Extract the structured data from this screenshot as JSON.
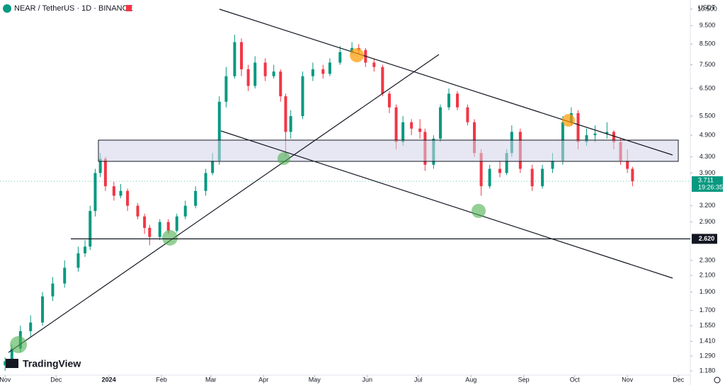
{
  "chart_data": {
    "type": "candlestick",
    "title": "NEAR / TetherUS · 1D · BINANCE",
    "currency": "USDT",
    "brand": "TradingView",
    "up_color": "#089981",
    "down_color": "#f23645",
    "log_scale": true,
    "x": [
      0,
      4,
      9,
      15,
      22,
      28,
      35,
      43,
      47,
      50,
      53,
      56,
      59,
      64,
      68,
      72,
      78,
      82,
      85,
      91,
      96,
      101,
      106,
      112,
      118,
      122,
      126,
      130,
      135,
      139,
      143,
      147,
      153,
      158,
      162,
      165,
      168,
      175,
      181,
      187,
      191,
      197,
      204,
      208,
      212,
      217,
      222,
      226,
      230,
      234,
      239,
      244,
      247,
      252,
      256,
      261,
      266,
      272,
      276,
      280,
      285,
      291,
      295,
      298,
      303,
      310,
      316,
      322,
      328,
      333,
      337,
      342,
      347,
      354,
      358,
      362,
      366,
      369
    ],
    "open": [
      1.22,
      1.25,
      1.35,
      1.5,
      1.58,
      1.85,
      2.0,
      2.2,
      2.4,
      2.5,
      3.1,
      3.9,
      4.25,
      3.6,
      3.4,
      3.5,
      3.2,
      3.0,
      2.8,
      2.65,
      2.9,
      2.75,
      3.0,
      3.2,
      3.5,
      3.9,
      4.2,
      6.0,
      7.0,
      8.6,
      7.3,
      6.6,
      7.6,
      7.0,
      7.2,
      6.2,
      5.0,
      5.5,
      7.0,
      7.3,
      7.1,
      7.6,
      8.1,
      8.3,
      8.2,
      7.6,
      7.4,
      6.3,
      5.8,
      4.7,
      5.3,
      5.1,
      5.0,
      4.1,
      4.8,
      5.8,
      6.3,
      5.8,
      5.3,
      4.4,
      3.6,
      4.0,
      3.9,
      4.4,
      5.0,
      4.0,
      3.6,
      4.0,
      4.2,
      5.3,
      5.6,
      4.7,
      4.9,
      4.95,
      5.0,
      4.7,
      4.2,
      4.0
    ],
    "high": [
      1.28,
      1.38,
      1.55,
      1.65,
      1.9,
      2.08,
      2.3,
      2.5,
      2.6,
      3.2,
      4.0,
      4.4,
      4.3,
      3.7,
      3.65,
      3.55,
      3.25,
      3.05,
      2.85,
      2.95,
      2.95,
      3.05,
      3.3,
      3.6,
      4.0,
      4.4,
      6.2,
      7.4,
      9.0,
      8.8,
      7.5,
      7.9,
      7.8,
      7.5,
      7.3,
      6.3,
      5.7,
      7.2,
      7.6,
      7.5,
      7.8,
      8.4,
      8.6,
      8.5,
      8.3,
      7.8,
      7.5,
      6.4,
      5.9,
      5.5,
      5.4,
      5.4,
      5.1,
      4.9,
      5.9,
      6.5,
      6.4,
      5.9,
      5.4,
      4.5,
      4.1,
      4.2,
      4.5,
      5.2,
      5.1,
      4.1,
      4.1,
      4.4,
      5.5,
      5.8,
      5.7,
      5.1,
      5.2,
      5.3,
      5.05,
      4.8,
      4.5,
      4.05
    ],
    "low": [
      1.18,
      1.23,
      1.32,
      1.45,
      1.55,
      1.8,
      1.95,
      2.15,
      2.35,
      2.45,
      3.0,
      3.8,
      3.5,
      3.3,
      3.35,
      3.1,
      2.95,
      2.7,
      2.52,
      2.6,
      2.7,
      2.72,
      2.95,
      3.15,
      3.4,
      3.85,
      4.1,
      5.8,
      6.9,
      7.0,
      6.4,
      6.5,
      6.8,
      6.9,
      6.0,
      4.3,
      4.8,
      5.4,
      6.8,
      6.9,
      7.0,
      7.5,
      8.0,
      8.0,
      7.4,
      7.2,
      6.2,
      5.6,
      4.5,
      4.6,
      4.9,
      4.8,
      3.95,
      4.0,
      4.7,
      5.7,
      5.7,
      5.2,
      4.3,
      3.4,
      3.55,
      3.8,
      3.85,
      4.3,
      3.9,
      3.5,
      3.55,
      3.9,
      4.1,
      5.2,
      4.5,
      4.6,
      4.7,
      4.8,
      4.5,
      4.1,
      3.9,
      3.6
    ],
    "close": [
      1.25,
      1.35,
      1.5,
      1.58,
      1.85,
      2.0,
      2.2,
      2.4,
      2.5,
      3.1,
      3.9,
      4.25,
      3.6,
      3.4,
      3.5,
      3.2,
      3.0,
      2.8,
      2.65,
      2.9,
      2.75,
      3.0,
      3.2,
      3.5,
      3.9,
      4.2,
      6.0,
      7.0,
      8.6,
      7.3,
      6.6,
      7.6,
      7.0,
      7.2,
      6.2,
      5.0,
      5.5,
      7.0,
      7.3,
      7.1,
      7.6,
      8.1,
      8.3,
      8.2,
      7.6,
      7.4,
      6.3,
      5.8,
      4.7,
      5.3,
      5.1,
      5.0,
      4.1,
      4.8,
      5.8,
      6.3,
      5.8,
      5.3,
      4.4,
      3.6,
      4.0,
      3.9,
      4.4,
      5.0,
      4.0,
      3.6,
      4.0,
      4.2,
      5.3,
      5.6,
      4.7,
      4.9,
      4.95,
      5.0,
      4.7,
      4.2,
      4.0,
      3.711
    ],
    "last_price": 3.711,
    "countdown": "19:26:35",
    "price_line": {
      "value": 2.62,
      "label": "2.620"
    },
    "xlim": [
      -3,
      403
    ],
    "xticks": [
      {
        "value": 0,
        "label": "Nov"
      },
      {
        "value": 30,
        "label": "Dec"
      },
      {
        "value": 61,
        "label": "2024"
      },
      {
        "value": 92,
        "label": "Feb"
      },
      {
        "value": 121,
        "label": "Mar"
      },
      {
        "value": 152,
        "label": "Apr"
      },
      {
        "value": 182,
        "label": "May"
      },
      {
        "value": 213,
        "label": "Jun"
      },
      {
        "value": 243,
        "label": "Jul"
      },
      {
        "value": 274,
        "label": "Aug"
      },
      {
        "value": 305,
        "label": "Sep"
      },
      {
        "value": 335,
        "label": "Oct"
      },
      {
        "value": 366,
        "label": "Nov"
      },
      {
        "value": 396,
        "label": "Dec"
      }
    ],
    "ylim": [
      1.15,
      11
    ],
    "yticks": [
      {
        "value": 10.5,
        "label": "10.500"
      },
      {
        "value": 9.5,
        "label": "9.500"
      },
      {
        "value": 8.5,
        "label": "8.500"
      },
      {
        "value": 7.5,
        "label": "7.500"
      },
      {
        "value": 6.5,
        "label": "6.500"
      },
      {
        "value": 5.5,
        "label": "5.500"
      },
      {
        "value": 4.9,
        "label": "4.900"
      },
      {
        "value": 4.3,
        "label": "4.300"
      },
      {
        "value": 3.9,
        "label": "3.900"
      },
      {
        "value": 3.2,
        "label": "3.200"
      },
      {
        "value": 2.9,
        "label": "2.900"
      },
      {
        "value": 2.3,
        "label": "2.300"
      },
      {
        "value": 2.1,
        "label": "2.100"
      },
      {
        "value": 1.9,
        "label": "1.900"
      },
      {
        "value": 1.7,
        "label": "1.700"
      },
      {
        "value": 1.55,
        "label": "1.550"
      },
      {
        "value": 1.41,
        "label": "1.410"
      },
      {
        "value": 1.29,
        "label": "1.290"
      },
      {
        "value": 1.18,
        "label": "1.180"
      }
    ]
  }
}
